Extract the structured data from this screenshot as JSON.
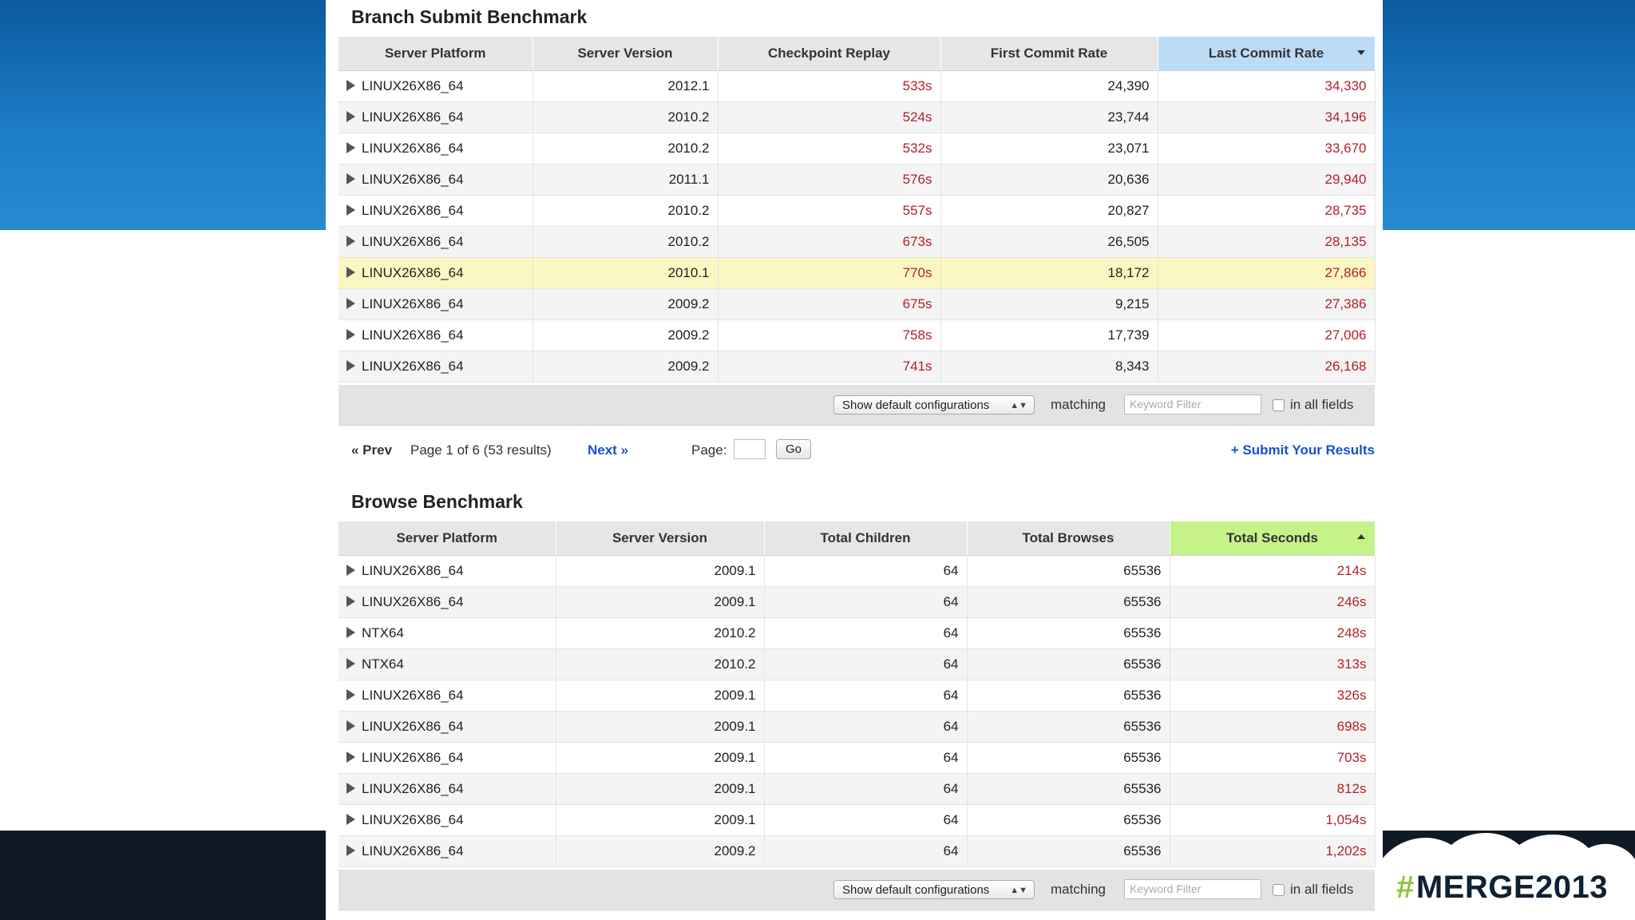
{
  "branch": {
    "title": "Branch Submit Benchmark",
    "columns": [
      "Server Platform",
      "Server Version",
      "Checkpoint Replay",
      "First Commit Rate",
      "Last Commit Rate"
    ],
    "rows": [
      {
        "platform": "LINUX26X86_64",
        "version": "2012.1",
        "replay": "533s",
        "first": "24,390",
        "last": "34,330"
      },
      {
        "platform": "LINUX26X86_64",
        "version": "2010.2",
        "replay": "524s",
        "first": "23,744",
        "last": "34,196"
      },
      {
        "platform": "LINUX26X86_64",
        "version": "2010.2",
        "replay": "532s",
        "first": "23,071",
        "last": "33,670"
      },
      {
        "platform": "LINUX26X86_64",
        "version": "2011.1",
        "replay": "576s",
        "first": "20,636",
        "last": "29,940"
      },
      {
        "platform": "LINUX26X86_64",
        "version": "2010.2",
        "replay": "557s",
        "first": "20,827",
        "last": "28,735"
      },
      {
        "platform": "LINUX26X86_64",
        "version": "2010.2",
        "replay": "673s",
        "first": "26,505",
        "last": "28,135"
      },
      {
        "platform": "LINUX26X86_64",
        "version": "2010.1",
        "replay": "770s",
        "first": "18,172",
        "last": "27,866"
      },
      {
        "platform": "LINUX26X86_64",
        "version": "2009.2",
        "replay": "675s",
        "first": "9,215",
        "last": "27,386"
      },
      {
        "platform": "LINUX26X86_64",
        "version": "2009.2",
        "replay": "758s",
        "first": "17,739",
        "last": "27,006"
      },
      {
        "platform": "LINUX26X86_64",
        "version": "2009.2",
        "replay": "741s",
        "first": "8,343",
        "last": "26,168"
      }
    ],
    "filter": {
      "select": "Show default configurations",
      "matching": "matching",
      "keyword_placeholder": "Keyword Filter",
      "in_all_fields": "in all fields"
    }
  },
  "pager": {
    "prev": "« Prev",
    "info": "Page 1 of 6 (53 results)",
    "next": "Next »",
    "page_label": "Page:",
    "go": "Go",
    "submit": "+ Submit Your Results"
  },
  "browse": {
    "title": "Browse Benchmark",
    "columns": [
      "Server Platform",
      "Server Version",
      "Total Children",
      "Total Browses",
      "Total Seconds"
    ],
    "rows": [
      {
        "platform": "LINUX26X86_64",
        "version": "2009.1",
        "children": "64",
        "browses": "65536",
        "seconds": "214s"
      },
      {
        "platform": "LINUX26X86_64",
        "version": "2009.1",
        "children": "64",
        "browses": "65536",
        "seconds": "246s"
      },
      {
        "platform": "NTX64",
        "version": "2010.2",
        "children": "64",
        "browses": "65536",
        "seconds": "248s"
      },
      {
        "platform": "NTX64",
        "version": "2010.2",
        "children": "64",
        "browses": "65536",
        "seconds": "313s"
      },
      {
        "platform": "LINUX26X86_64",
        "version": "2009.1",
        "children": "64",
        "browses": "65536",
        "seconds": "326s"
      },
      {
        "platform": "LINUX26X86_64",
        "version": "2009.1",
        "children": "64",
        "browses": "65536",
        "seconds": "698s"
      },
      {
        "platform": "LINUX26X86_64",
        "version": "2009.1",
        "children": "64",
        "browses": "65536",
        "seconds": "703s"
      },
      {
        "platform": "LINUX26X86_64",
        "version": "2009.1",
        "children": "64",
        "browses": "65536",
        "seconds": "812s"
      },
      {
        "platform": "LINUX26X86_64",
        "version": "2009.1",
        "children": "64",
        "browses": "65536",
        "seconds": "1,054s"
      },
      {
        "platform": "LINUX26X86_64",
        "version": "2009.2",
        "children": "64",
        "browses": "65536",
        "seconds": "1,202s"
      }
    ],
    "filter": {
      "select": "Show default configurations",
      "matching": "matching",
      "keyword_placeholder": "Keyword Filter",
      "in_all_fields": "in all fields"
    }
  },
  "brand": {
    "hash": "#",
    "text": "MERGE2013"
  },
  "colors": {
    "sorted_blue": "#bcdcf6",
    "sorted_green": "#c6f28a",
    "value_red": "#b4202a",
    "highlight_row": "#fbf7c2",
    "link_blue": "#1a4fd0"
  }
}
